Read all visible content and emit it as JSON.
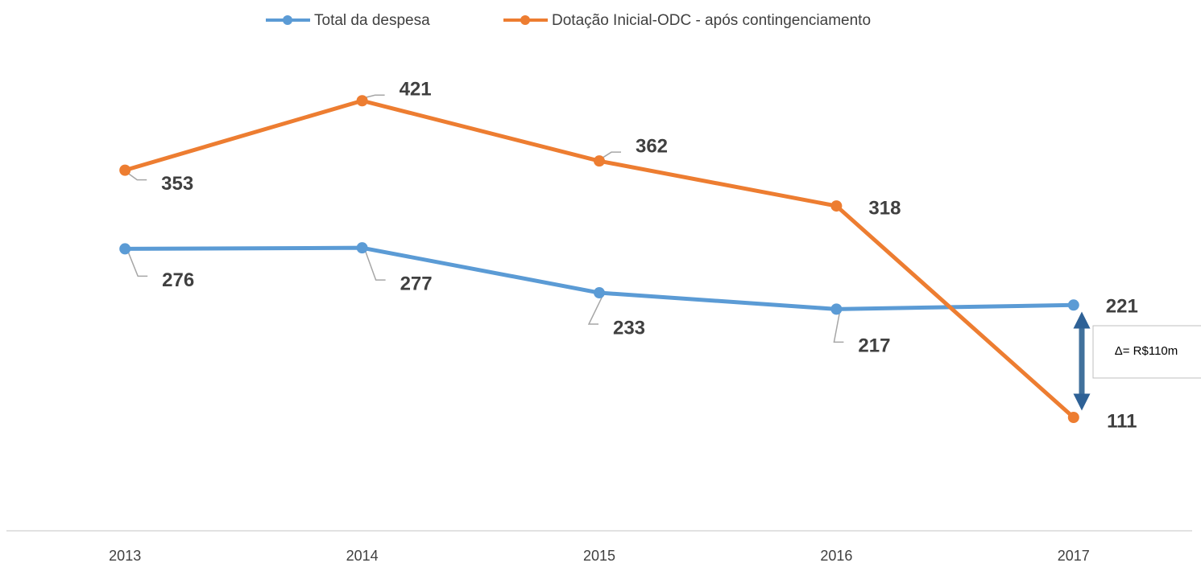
{
  "chart_data": {
    "type": "line",
    "categories": [
      "2013",
      "2014",
      "2015",
      "2016",
      "2017"
    ],
    "series": [
      {
        "name": "Total da despesa",
        "color": "#5b9bd5",
        "values": [
          276,
          277,
          233,
          217,
          221
        ]
      },
      {
        "name": "Dotação Inicial-ODC - após contingenciamento",
        "color": "#ed7d31",
        "values": [
          353,
          421,
          362,
          318,
          111
        ]
      }
    ],
    "ylim": [
      0,
      470
    ],
    "annotation": "Δ= R$110m"
  }
}
